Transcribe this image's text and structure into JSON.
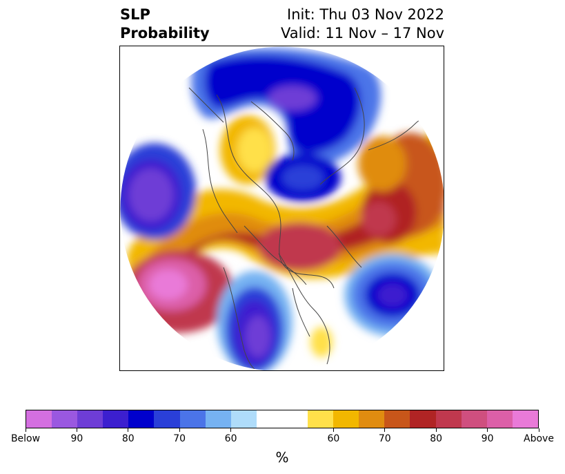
{
  "title": {
    "left_line1": "SLP",
    "left_line2": "Probability",
    "right_line1": "Init: Thu 03 Nov 2022",
    "right_line2": "Valid: 11 Nov – 17 Nov"
  },
  "colorbar": {
    "unit": "%",
    "colors": [
      "#d46fe0",
      "#9a58e0",
      "#6e3dd6",
      "#3c1fcf",
      "#0000cc",
      "#2a3fd8",
      "#4b74e8",
      "#76b2f2",
      "#afdcfa",
      "#ffffff",
      "#ffffff",
      "#ffe04a",
      "#f2b700",
      "#e08c10",
      "#c8561a",
      "#b02424",
      "#c0384e",
      "#cf4f7f",
      "#dc5fa8",
      "#e97ad8"
    ],
    "tick_labels": [
      "Below",
      "90",
      "80",
      "70",
      "60",
      "60",
      "70",
      "80",
      "90",
      "Above"
    ]
  },
  "colors": {
    "coastline": "#444444",
    "frame": "#000000"
  }
}
